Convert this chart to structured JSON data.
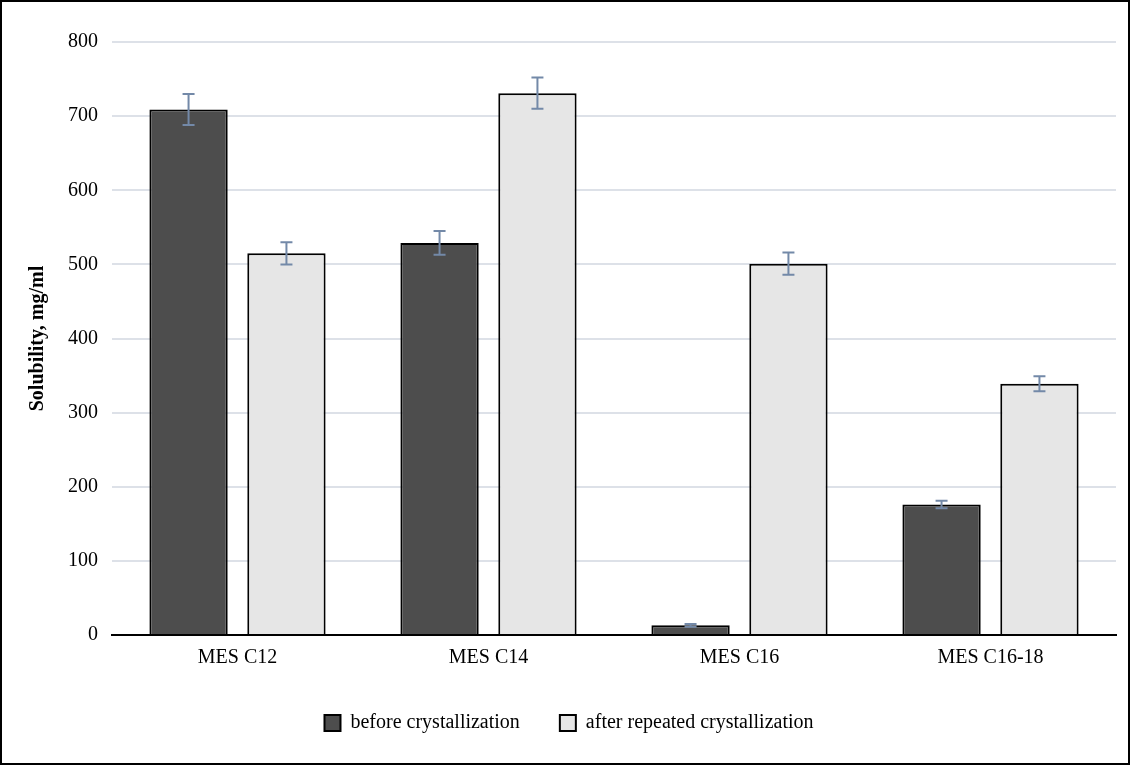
{
  "chart_data": {
    "type": "bar",
    "ylabel": "Solubility, mg/ml",
    "categories": [
      "MES C12",
      "MES C14",
      "MES C16",
      "MES C16-18"
    ],
    "series": [
      {
        "name": "before crystallization",
        "color": "#4d4d4d",
        "values": [
          709,
          529,
          13,
          176
        ],
        "errors": [
          21,
          16,
          2,
          5
        ]
      },
      {
        "name": "after repeated crystallization",
        "color": "#e6e6e6",
        "values": [
          515,
          731,
          501,
          339
        ],
        "errors": [
          15,
          21,
          15,
          10
        ]
      }
    ],
    "ylim": [
      0,
      800
    ],
    "yticks": [
      0,
      100,
      200,
      300,
      400,
      500,
      600,
      700,
      800
    ],
    "grid": "y",
    "legend": "bottom"
  }
}
